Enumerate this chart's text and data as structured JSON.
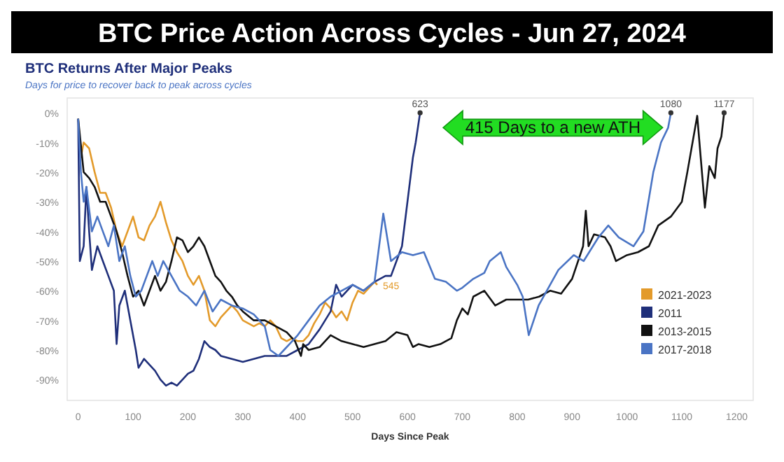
{
  "chart_data": {
    "type": "line",
    "title": "BTC Price Action Across Cycles - Jun 27, 2024",
    "subtitle": "BTC Returns After Major Peaks",
    "xlabel": "Days Since Peak",
    "annotations": [
      "Days for price to recover back to peak across cycles",
      "415 Days to a new ATH",
      {
        "text": "623",
        "x": 623,
        "y": 0
      },
      {
        "text": "1080",
        "x": 1080,
        "y": 0
      },
      {
        "text": "1177",
        "x": 1177,
        "y": 0
      },
      {
        "text": "545",
        "x": 545,
        "y": -58
      }
    ],
    "xlim": [
      -20,
      1230
    ],
    "ylim": [
      -97,
      5
    ],
    "xticks": [
      0,
      100,
      200,
      300,
      400,
      500,
      600,
      700,
      800,
      900,
      1000,
      1100,
      1200
    ],
    "yticks": [
      {
        "value": 0,
        "label": "0%"
      },
      {
        "value": -10,
        "label": "-10%"
      },
      {
        "value": -20,
        "label": "-20%"
      },
      {
        "value": -30,
        "label": "-30%"
      },
      {
        "value": -40,
        "label": "-40%"
      },
      {
        "value": -50,
        "label": "-50%"
      },
      {
        "value": -60,
        "label": "-60%"
      },
      {
        "value": -70,
        "label": "-70%"
      },
      {
        "value": -80,
        "label": "-80%"
      },
      {
        "value": -90,
        "label": "-90%"
      }
    ],
    "grid": false,
    "legend": "bottom right",
    "marker": "none",
    "line_style": "solid",
    "series": [
      {
        "name": "2021-2023",
        "color": "#e39a2a",
        "x": [
          0,
          5,
          10,
          20,
          30,
          40,
          50,
          60,
          70,
          80,
          90,
          100,
          110,
          120,
          130,
          140,
          150,
          160,
          170,
          180,
          190,
          200,
          210,
          220,
          230,
          240,
          250,
          260,
          270,
          280,
          290,
          300,
          310,
          320,
          330,
          340,
          350,
          360,
          370,
          380,
          390,
          400,
          410,
          420,
          430,
          440,
          450,
          460,
          470,
          480,
          490,
          500,
          510,
          520,
          530,
          540,
          545
        ],
        "values": [
          -2,
          -15,
          -10,
          -12,
          -20,
          -27,
          -27,
          -32,
          -40,
          -45,
          -40,
          -35,
          -42,
          -43,
          -38,
          -35,
          -30,
          -37,
          -43,
          -47,
          -50,
          -55,
          -58,
          -55,
          -60,
          -70,
          -72,
          -69,
          -67,
          -65,
          -67,
          -70,
          -71,
          -72,
          -71,
          -72,
          -70,
          -72,
          -76,
          -77,
          -76,
          -77,
          -77,
          -75,
          -71,
          -68,
          -64,
          -66,
          -69,
          -67,
          -70,
          -64,
          -60,
          -61,
          -59,
          -57,
          -58
        ]
      },
      {
        "name": "2011",
        "color": "#1f2f7a",
        "x": [
          0,
          3,
          10,
          15,
          20,
          25,
          35,
          45,
          55,
          65,
          70,
          75,
          85,
          95,
          105,
          110,
          120,
          130,
          140,
          150,
          160,
          170,
          180,
          190,
          200,
          210,
          220,
          230,
          240,
          250,
          260,
          280,
          300,
          320,
          340,
          360,
          380,
          400,
          420,
          440,
          460,
          470,
          480,
          500,
          520,
          540,
          560,
          570,
          580,
          590,
          600,
          610,
          615,
          623
        ],
        "values": [
          -2,
          -50,
          -45,
          -25,
          -40,
          -53,
          -45,
          -50,
          -55,
          -60,
          -78,
          -65,
          -60,
          -70,
          -80,
          -86,
          -83,
          -85,
          -87,
          -90,
          -92,
          -91,
          -92,
          -90,
          -88,
          -87,
          -83,
          -77,
          -79,
          -80,
          -82,
          -83,
          -84,
          -83,
          -82,
          -82,
          -82,
          -80,
          -78,
          -73,
          -67,
          -58,
          -62,
          -58,
          -60,
          -57,
          -55,
          -55,
          -50,
          -45,
          -30,
          -15,
          -10,
          0
        ]
      },
      {
        "name": "2013-2015",
        "color": "#111111",
        "x": [
          0,
          10,
          20,
          30,
          40,
          50,
          60,
          70,
          80,
          90,
          100,
          110,
          120,
          130,
          140,
          150,
          160,
          170,
          180,
          190,
          200,
          210,
          220,
          230,
          240,
          250,
          260,
          270,
          280,
          290,
          300,
          320,
          340,
          360,
          380,
          395,
          406,
          410,
          420,
          440,
          460,
          480,
          500,
          520,
          540,
          560,
          580,
          600,
          610,
          620,
          640,
          660,
          680,
          690,
          700,
          710,
          720,
          740,
          760,
          780,
          800,
          820,
          840,
          860,
          880,
          900,
          920,
          925,
          930,
          940,
          960,
          970,
          980,
          1000,
          1020,
          1040,
          1057,
          1080,
          1100,
          1110,
          1128,
          1142,
          1150,
          1160,
          1165,
          1172,
          1177
        ],
        "values": [
          -2,
          -20,
          -22,
          -25,
          -30,
          -30,
          -35,
          -40,
          -47,
          -55,
          -62,
          -60,
          -65,
          -60,
          -55,
          -60,
          -57,
          -50,
          -42,
          -43,
          -47,
          -45,
          -42,
          -45,
          -50,
          -55,
          -57,
          -60,
          -62,
          -65,
          -67,
          -70,
          -70,
          -72,
          -74,
          -77,
          -82,
          -78,
          -80,
          -79,
          -75,
          -77,
          -78,
          -79,
          -78,
          -77,
          -74,
          -75,
          -79,
          -78,
          -79,
          -78,
          -76,
          -70,
          -66,
          -68,
          -62,
          -60,
          -65,
          -63,
          -63,
          -63,
          -62,
          -60,
          -61,
          -56,
          -45,
          -33,
          -45,
          -41,
          -42,
          -45,
          -50,
          -48,
          -47,
          -45,
          -38,
          -35,
          -30,
          -20,
          -1,
          -32,
          -18,
          -22,
          -12,
          -8,
          0
        ]
      },
      {
        "name": "2017-2018",
        "color": "#4a74c4",
        "x": [
          0,
          5,
          10,
          15,
          25,
          35,
          45,
          55,
          65,
          75,
          85,
          95,
          105,
          115,
          125,
          135,
          145,
          155,
          170,
          185,
          200,
          215,
          230,
          245,
          260,
          280,
          300,
          320,
          340,
          350,
          365,
          375,
          385,
          400,
          420,
          440,
          460,
          480,
          500,
          520,
          540,
          556,
          570,
          590,
          610,
          630,
          650,
          670,
          690,
          700,
          720,
          740,
          750,
          770,
          780,
          790,
          800,
          810,
          821,
          839,
          875,
          903,
          921,
          948,
          966,
          985,
          1012,
          1030,
          1048,
          1062,
          1075,
          1080
        ],
        "values": [
          -2,
          -20,
          -30,
          -25,
          -40,
          -35,
          -40,
          -45,
          -38,
          -50,
          -45,
          -55,
          -62,
          -60,
          -55,
          -50,
          -55,
          -50,
          -55,
          -60,
          -62,
          -65,
          -60,
          -67,
          -63,
          -65,
          -66,
          -68,
          -72,
          -80,
          -82,
          -80,
          -78,
          -75,
          -70,
          -65,
          -62,
          -60,
          -58,
          -60,
          -57,
          -34,
          -50,
          -47,
          -48,
          -47,
          -56,
          -57,
          -60,
          -59,
          -56,
          -54,
          -50,
          -47,
          -52,
          -55,
          -58,
          -62,
          -75,
          -65,
          -53,
          -48,
          -50,
          -42,
          -38,
          -42,
          -45,
          -40,
          -20,
          -10,
          -5,
          0
        ]
      }
    ]
  }
}
